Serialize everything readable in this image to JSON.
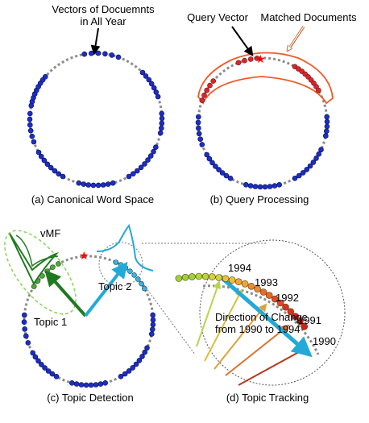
{
  "panel_a": {
    "caption": "(a) Canonical Word Space",
    "annotation_line1": "Vectors of Docuemnts",
    "annotation_line2": "in All Year"
  },
  "panel_b": {
    "caption": "(b) Query Processing",
    "query_label": "Query Vector",
    "matched_label": "Matched Documents"
  },
  "panel_c": {
    "caption": "(c) Topic Detection",
    "vmf_label": "vMF",
    "topic1_label": "Topic 1",
    "topic2_label": "Topic 2"
  },
  "panel_d": {
    "caption": "(d) Topic Tracking",
    "change_line1": "Direction of Change",
    "change_line2": "from 1990 to 1994",
    "years": [
      "1994",
      "1993",
      "1992",
      "1991",
      "1990"
    ]
  },
  "colors": {
    "document_dot": "#1c2fc4",
    "circle_dash": "#8c8c8c",
    "query_star": "#ff0000",
    "match_outline": "#f05a28",
    "topic1": "#1f7a1f",
    "topic2": "#22a9d8",
    "vmf_outline": "#86d45a"
  }
}
